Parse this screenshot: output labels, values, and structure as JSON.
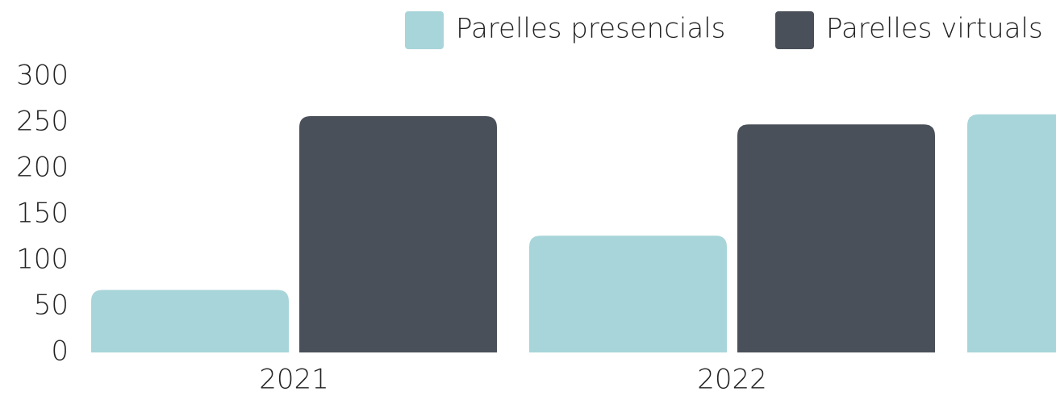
{
  "chart_data": {
    "type": "bar",
    "categories": [
      "2021",
      "2022",
      null
    ],
    "series": [
      {
        "name": "Parelles presencials",
        "color": "#a8d5d9",
        "values": [
          68,
          127,
          259
        ]
      },
      {
        "name": "Parelles virtuals",
        "color": "#4a5059",
        "values": [
          257,
          248,
          null
        ]
      }
    ],
    "ylim": [
      0,
      300
    ],
    "yticks": [
      0,
      50,
      100,
      150,
      200,
      250,
      300
    ],
    "grid": false,
    "legend": "top-right"
  }
}
